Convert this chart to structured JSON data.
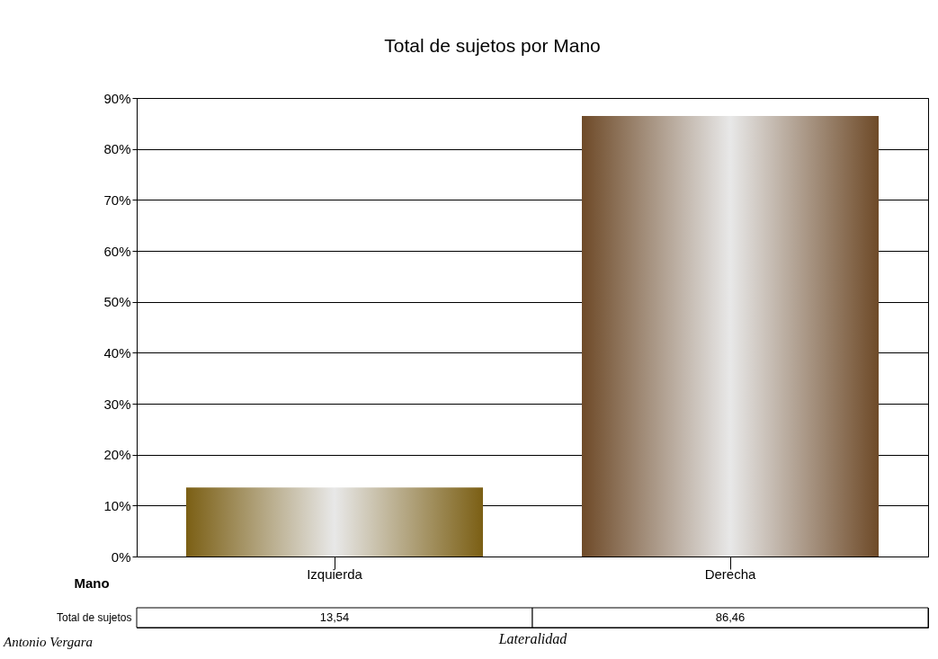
{
  "chart_data": {
    "type": "bar",
    "title": "Total de sujetos por Mano",
    "xlabel": "Lateralidad",
    "categories": [
      "Izquierda",
      "Derecha"
    ],
    "values": [
      13.54,
      86.46
    ],
    "colors": [
      "#7b5f14",
      "#6e4a28"
    ],
    "value_labels": [
      "13,54",
      "86,46"
    ],
    "ylim": [
      0,
      90
    ],
    "yticks": [
      {
        "value": 0,
        "label": "0%"
      },
      {
        "value": 10,
        "label": "10%"
      },
      {
        "value": 20,
        "label": "20%"
      },
      {
        "value": 30,
        "label": "30%"
      },
      {
        "value": 40,
        "label": "40%"
      },
      {
        "value": 50,
        "label": "50%"
      },
      {
        "value": 60,
        "label": "60%"
      },
      {
        "value": 70,
        "label": "70%"
      },
      {
        "value": 80,
        "label": "80%"
      },
      {
        "value": 90,
        "label": "90%"
      }
    ],
    "grid": "y",
    "annotations": [
      "Mano",
      "Total de sujetos",
      "Antonio Vergara"
    ]
  }
}
